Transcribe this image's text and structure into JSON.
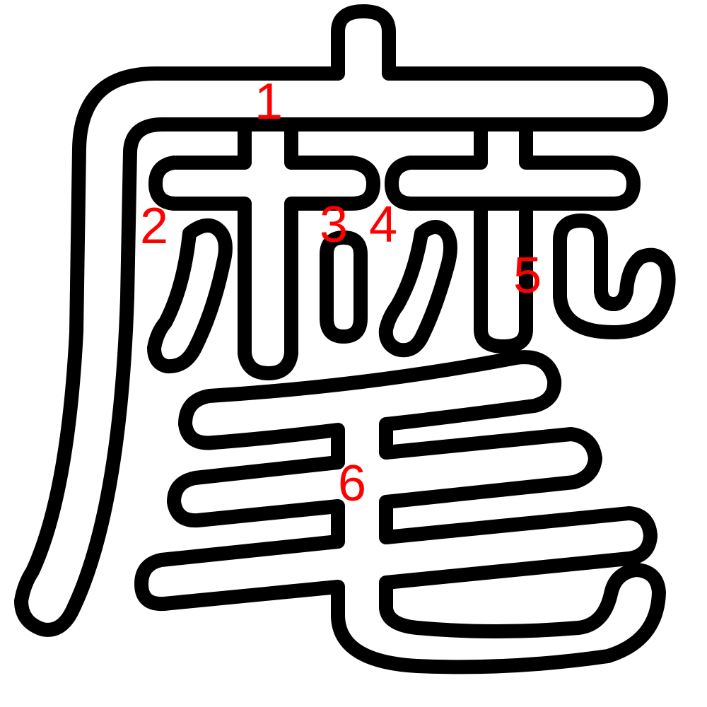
{
  "diagram": {
    "strokes": [
      {
        "number": "1"
      },
      {
        "number": "2"
      },
      {
        "number": "3"
      },
      {
        "number": "4"
      },
      {
        "number": "5"
      },
      {
        "number": "6"
      }
    ],
    "colors": {
      "outline": "#000000",
      "fill": "#ffffff",
      "number": "#ff0000"
    }
  }
}
